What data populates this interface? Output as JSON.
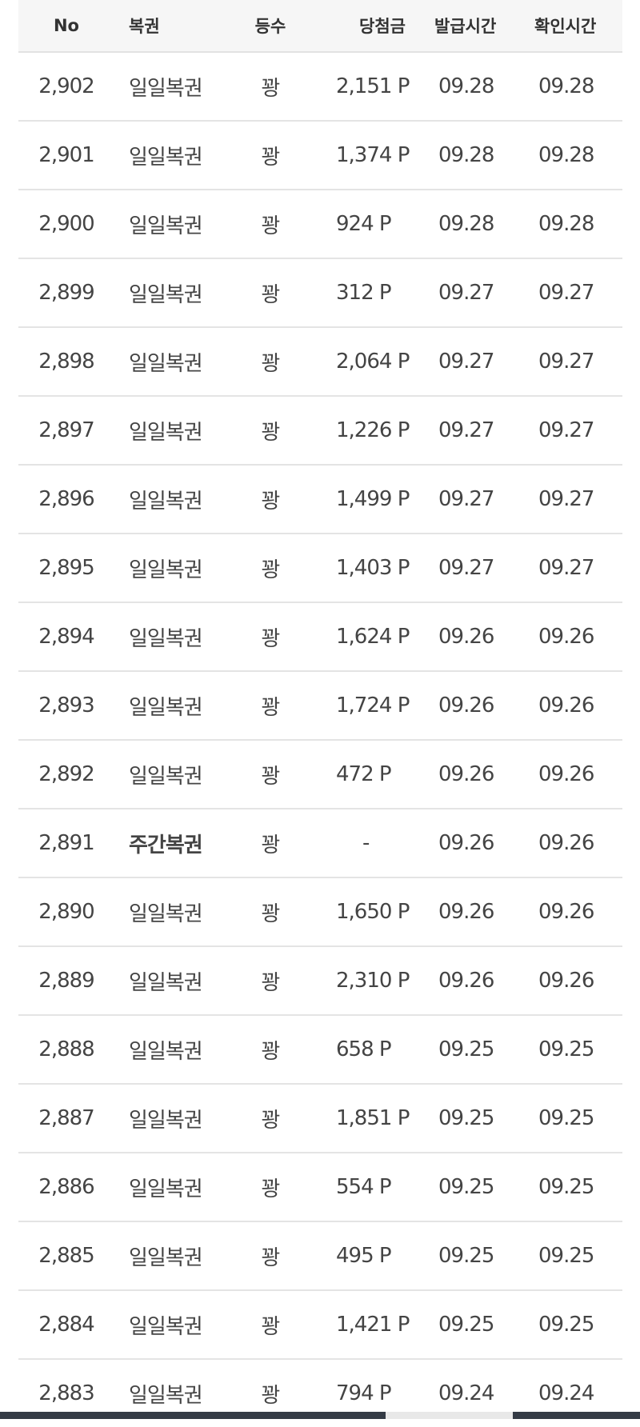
{
  "header": {
    "no": "No",
    "type": "복권",
    "rank": "등수",
    "amount": "당첨금",
    "issued": "발급시간",
    "checked": "확인시간"
  },
  "rows": [
    {
      "no": "2,902",
      "type": "일일복권",
      "rank": "꽝",
      "amount": "2,151 P",
      "issued": "09.28",
      "checked": "09.28"
    },
    {
      "no": "2,901",
      "type": "일일복권",
      "rank": "꽝",
      "amount": "1,374 P",
      "issued": "09.28",
      "checked": "09.28"
    },
    {
      "no": "2,900",
      "type": "일일복권",
      "rank": "꽝",
      "amount": "924 P",
      "issued": "09.28",
      "checked": "09.28"
    },
    {
      "no": "2,899",
      "type": "일일복권",
      "rank": "꽝",
      "amount": "312 P",
      "issued": "09.27",
      "checked": "09.27"
    },
    {
      "no": "2,898",
      "type": "일일복권",
      "rank": "꽝",
      "amount": "2,064 P",
      "issued": "09.27",
      "checked": "09.27"
    },
    {
      "no": "2,897",
      "type": "일일복권",
      "rank": "꽝",
      "amount": "1,226 P",
      "issued": "09.27",
      "checked": "09.27"
    },
    {
      "no": "2,896",
      "type": "일일복권",
      "rank": "꽝",
      "amount": "1,499 P",
      "issued": "09.27",
      "checked": "09.27"
    },
    {
      "no": "2,895",
      "type": "일일복권",
      "rank": "꽝",
      "amount": "1,403 P",
      "issued": "09.27",
      "checked": "09.27"
    },
    {
      "no": "2,894",
      "type": "일일복권",
      "rank": "꽝",
      "amount": "1,624 P",
      "issued": "09.26",
      "checked": "09.26"
    },
    {
      "no": "2,893",
      "type": "일일복권",
      "rank": "꽝",
      "amount": "1,724 P",
      "issued": "09.26",
      "checked": "09.26"
    },
    {
      "no": "2,892",
      "type": "일일복권",
      "rank": "꽝",
      "amount": "472 P",
      "issued": "09.26",
      "checked": "09.26"
    },
    {
      "no": "2,891",
      "type": "주간복권",
      "rank": "꽝",
      "amount": "-",
      "issued": "09.26",
      "checked": "09.26",
      "bold": true
    },
    {
      "no": "2,890",
      "type": "일일복권",
      "rank": "꽝",
      "amount": "1,650 P",
      "issued": "09.26",
      "checked": "09.26"
    },
    {
      "no": "2,889",
      "type": "일일복권",
      "rank": "꽝",
      "amount": "2,310 P",
      "issued": "09.26",
      "checked": "09.26"
    },
    {
      "no": "2,888",
      "type": "일일복권",
      "rank": "꽝",
      "amount": "658 P",
      "issued": "09.25",
      "checked": "09.25"
    },
    {
      "no": "2,887",
      "type": "일일복권",
      "rank": "꽝",
      "amount": "1,851 P",
      "issued": "09.25",
      "checked": "09.25"
    },
    {
      "no": "2,886",
      "type": "일일복권",
      "rank": "꽝",
      "amount": "554 P",
      "issued": "09.25",
      "checked": "09.25"
    },
    {
      "no": "2,885",
      "type": "일일복권",
      "rank": "꽝",
      "amount": "495 P",
      "issued": "09.25",
      "checked": "09.25"
    },
    {
      "no": "2,884",
      "type": "일일복권",
      "rank": "꽝",
      "amount": "1,421 P",
      "issued": "09.25",
      "checked": "09.25"
    },
    {
      "no": "2,883",
      "type": "일일복권",
      "rank": "꽝",
      "amount": "794 P",
      "issued": "09.24",
      "checked": "09.24"
    }
  ]
}
